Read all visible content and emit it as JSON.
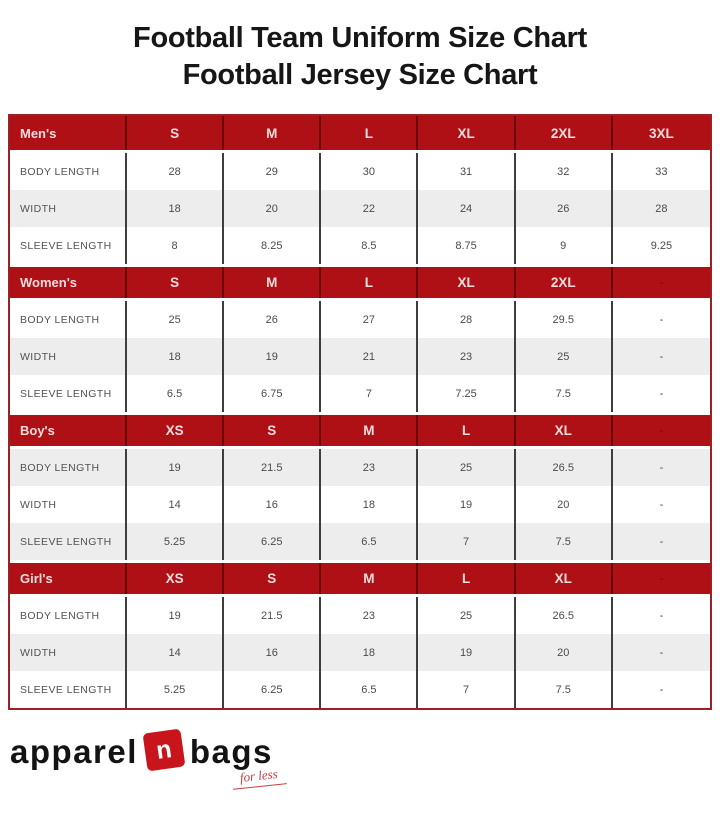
{
  "title": {
    "line1": "Football Team Uniform Size Chart",
    "line2": "Football Jersey Size Chart"
  },
  "colors": {
    "header_red": "#AF1015",
    "header_text": "#F7DEDE",
    "alt_row_gray": "#EDEDEE",
    "outer_border_red": "#9C2125",
    "grid_line": "#3E3E40",
    "value_text": "#4B4B4D",
    "label_text": "#525254",
    "logo_red": "#C8151B",
    "title_black": "#161616",
    "dim_dash": "#8C0E12"
  },
  "chart_data": [
    {
      "type": "table",
      "group": "Men's",
      "sizes": [
        "S",
        "M",
        "L",
        "XL",
        "2XL",
        "3XL"
      ],
      "shaded_rows": [
        1
      ],
      "rows": [
        {
          "label": "BODY LENGTH",
          "values": [
            "28",
            "29",
            "30",
            "31",
            "32",
            "33"
          ]
        },
        {
          "label": "WIDTH",
          "values": [
            "18",
            "20",
            "22",
            "24",
            "26",
            "28"
          ]
        },
        {
          "label": "SLEEVE LENGTH",
          "values": [
            "8",
            "8.25",
            "8.5",
            "8.75",
            "9",
            "9.25"
          ]
        }
      ]
    },
    {
      "type": "table",
      "group": "Women's",
      "sizes": [
        "S",
        "M",
        "L",
        "XL",
        "2XL",
        "-"
      ],
      "shaded_rows": [
        1
      ],
      "rows": [
        {
          "label": "BODY LENGTH",
          "values": [
            "25",
            "26",
            "27",
            "28",
            "29.5",
            "-"
          ]
        },
        {
          "label": "WIDTH",
          "values": [
            "18",
            "19",
            "21",
            "23",
            "25",
            "-"
          ]
        },
        {
          "label": "SLEEVE LENGTH",
          "values": [
            "6.5",
            "6.75",
            "7",
            "7.25",
            "7.5",
            "-"
          ]
        }
      ]
    },
    {
      "type": "table",
      "group": "Boy's",
      "sizes": [
        "XS",
        "S",
        "M",
        "L",
        "XL",
        "-"
      ],
      "shaded_rows": [
        0,
        2
      ],
      "rows": [
        {
          "label": "BODY LENGTH",
          "values": [
            "19",
            "21.5",
            "23",
            "25",
            "26.5",
            "-"
          ]
        },
        {
          "label": "WIDTH",
          "values": [
            "14",
            "16",
            "18",
            "19",
            "20",
            "-"
          ]
        },
        {
          "label": "SLEEVE LENGTH",
          "values": [
            "5.25",
            "6.25",
            "6.5",
            "7",
            "7.5",
            "-"
          ]
        }
      ]
    },
    {
      "type": "table",
      "group": "Girl's",
      "sizes": [
        "XS",
        "S",
        "M",
        "L",
        "XL",
        "-"
      ],
      "shaded_rows": [
        1
      ],
      "rows": [
        {
          "label": "BODY LENGTH",
          "values": [
            "19",
            "21.5",
            "23",
            "25",
            "26.5",
            "-"
          ]
        },
        {
          "label": "WIDTH",
          "values": [
            "14",
            "16",
            "18",
            "19",
            "20",
            "-"
          ]
        },
        {
          "label": "SLEEVE LENGTH",
          "values": [
            "5.25",
            "6.25",
            "6.5",
            "7",
            "7.5",
            "-"
          ]
        }
      ]
    }
  ],
  "logo": {
    "word1": "apparel",
    "letter": "n",
    "word2": "bags",
    "tagline": "for less"
  }
}
